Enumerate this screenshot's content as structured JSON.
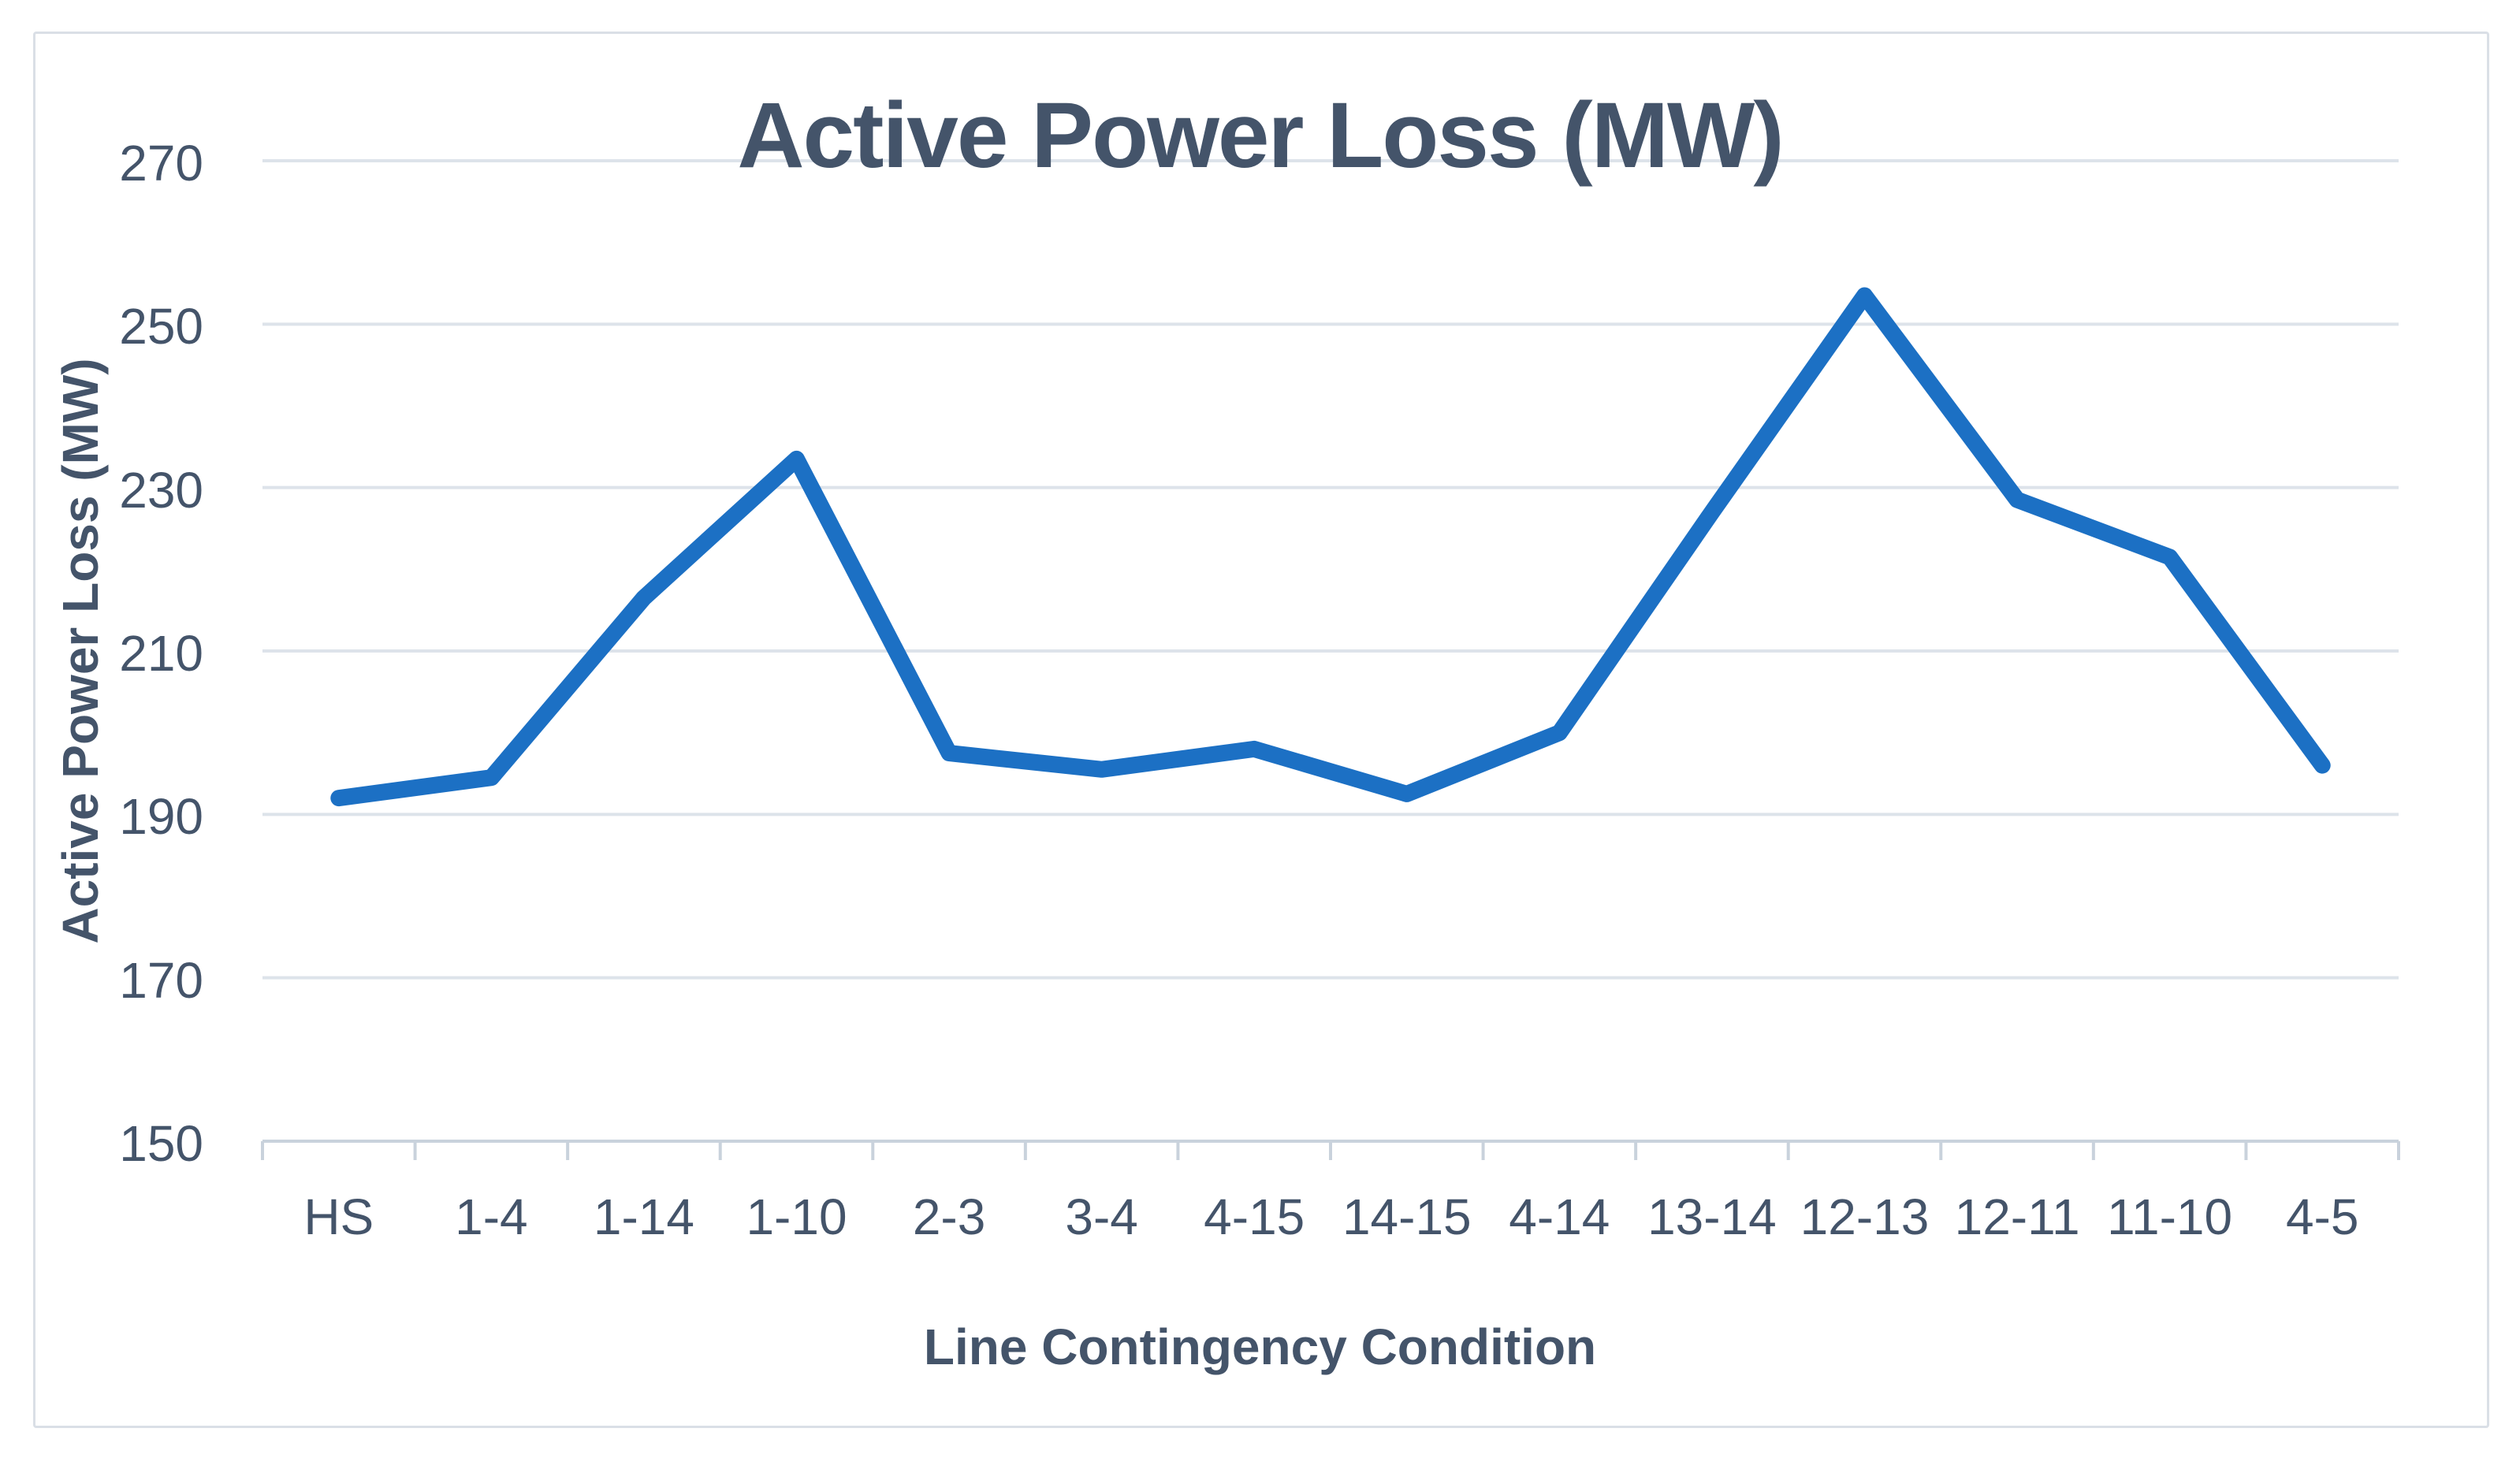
{
  "chart_data": {
    "type": "line",
    "title": "Active Power Loss (MW)",
    "xlabel": "Line Contingency Condition",
    "ylabel": "Active Power Loss (MW)",
    "categories": [
      "HS",
      "1-4",
      "1-14",
      "1-10",
      "2-3",
      "3-4",
      "4-15",
      "14-15",
      "4-14",
      "13-14",
      "12-13",
      "12-11",
      "11-10",
      "4-5"
    ],
    "values": [
      192,
      194.5,
      216.5,
      233.5,
      197.5,
      195.5,
      198,
      192.5,
      200,
      227,
      253.5,
      228.5,
      221.5,
      196
    ],
    "ylim": [
      150,
      270
    ],
    "yticks": [
      150,
      170,
      190,
      210,
      230,
      250,
      270
    ],
    "grid": true,
    "legend_position": "none",
    "colors": {
      "series_line": "#1c70c4",
      "text": "#44546a",
      "gridline": "#dde3ea",
      "axis_line": "#c9d2dc",
      "chart_border": "#dadfe6",
      "background": "#ffffff"
    }
  }
}
